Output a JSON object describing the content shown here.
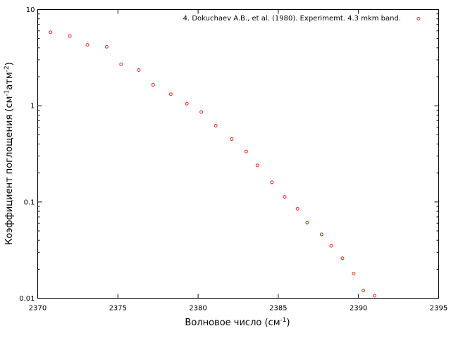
{
  "chart_data": {
    "type": "scatter",
    "title": "",
    "xlabel": {
      "text": "Волновое число (см",
      "sup": "-1",
      "tail": ")"
    },
    "ylabel": {
      "text": "Коэффициент поглощения (см",
      "sup1": "-1",
      "mid": "атм",
      "sup2": "-2",
      "tail": ")"
    },
    "xlim": [
      2370,
      2395
    ],
    "ylim": [
      0.01,
      10
    ],
    "yscale": "log",
    "grid": false,
    "legend": "top-right",
    "x_ticks": [
      "2370",
      "2375",
      "2380",
      "2385",
      "2390",
      "2395"
    ],
    "y_ticks": [
      "0.01",
      "0.1",
      "1",
      "10"
    ],
    "marker_color": "#e8261c",
    "series": [
      {
        "name": "4. Dokuchaev A.B., et al. (1980). Experimemt. 4.3 mkm band.",
        "x": [
          2370.8,
          2372.0,
          2373.1,
          2374.3,
          2375.2,
          2376.3,
          2377.2,
          2378.3,
          2379.3,
          2380.2,
          2381.1,
          2382.1,
          2383.0,
          2383.7,
          2384.6,
          2385.4,
          2386.2,
          2386.8,
          2387.7,
          2388.3,
          2389.0,
          2389.7,
          2390.3,
          2391.0
        ],
        "y": [
          5.8,
          5.3,
          4.3,
          4.1,
          2.7,
          2.35,
          1.65,
          1.32,
          1.05,
          0.86,
          0.62,
          0.45,
          0.335,
          0.24,
          0.16,
          0.113,
          0.085,
          0.061,
          0.046,
          0.035,
          0.026,
          0.018,
          0.012,
          0.0106
        ]
      }
    ]
  }
}
